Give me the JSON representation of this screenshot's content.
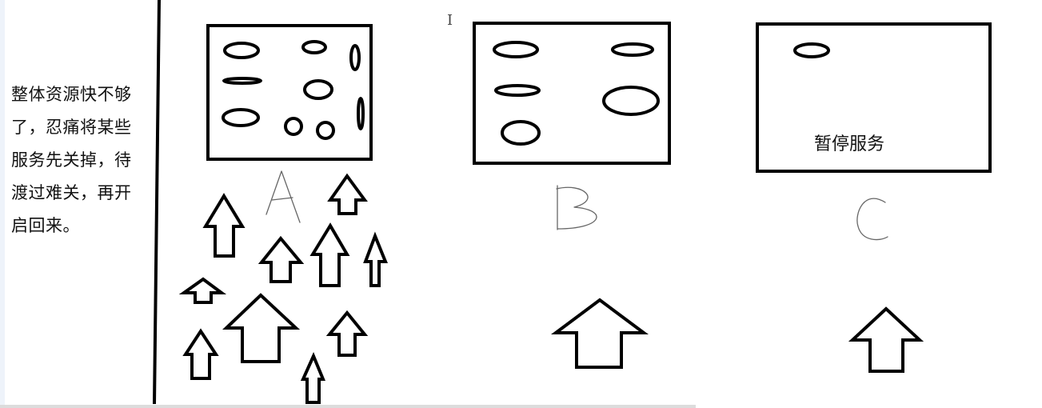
{
  "note": {
    "lines": [
      "整体资源快不够",
      "了，忍痛将某些",
      "服务先关掉，待",
      "渡过难关，再开",
      "启回来。"
    ]
  },
  "boxes": [
    {
      "id": "a",
      "label": "A"
    },
    {
      "id": "b",
      "label": "B"
    },
    {
      "id": "c",
      "label": "C",
      "caption": "暂停服务"
    }
  ],
  "cursor_glyph": "I",
  "colors": {
    "stroke": "#000000",
    "background": "#ffffff",
    "side_strip": "#eef3fa"
  }
}
